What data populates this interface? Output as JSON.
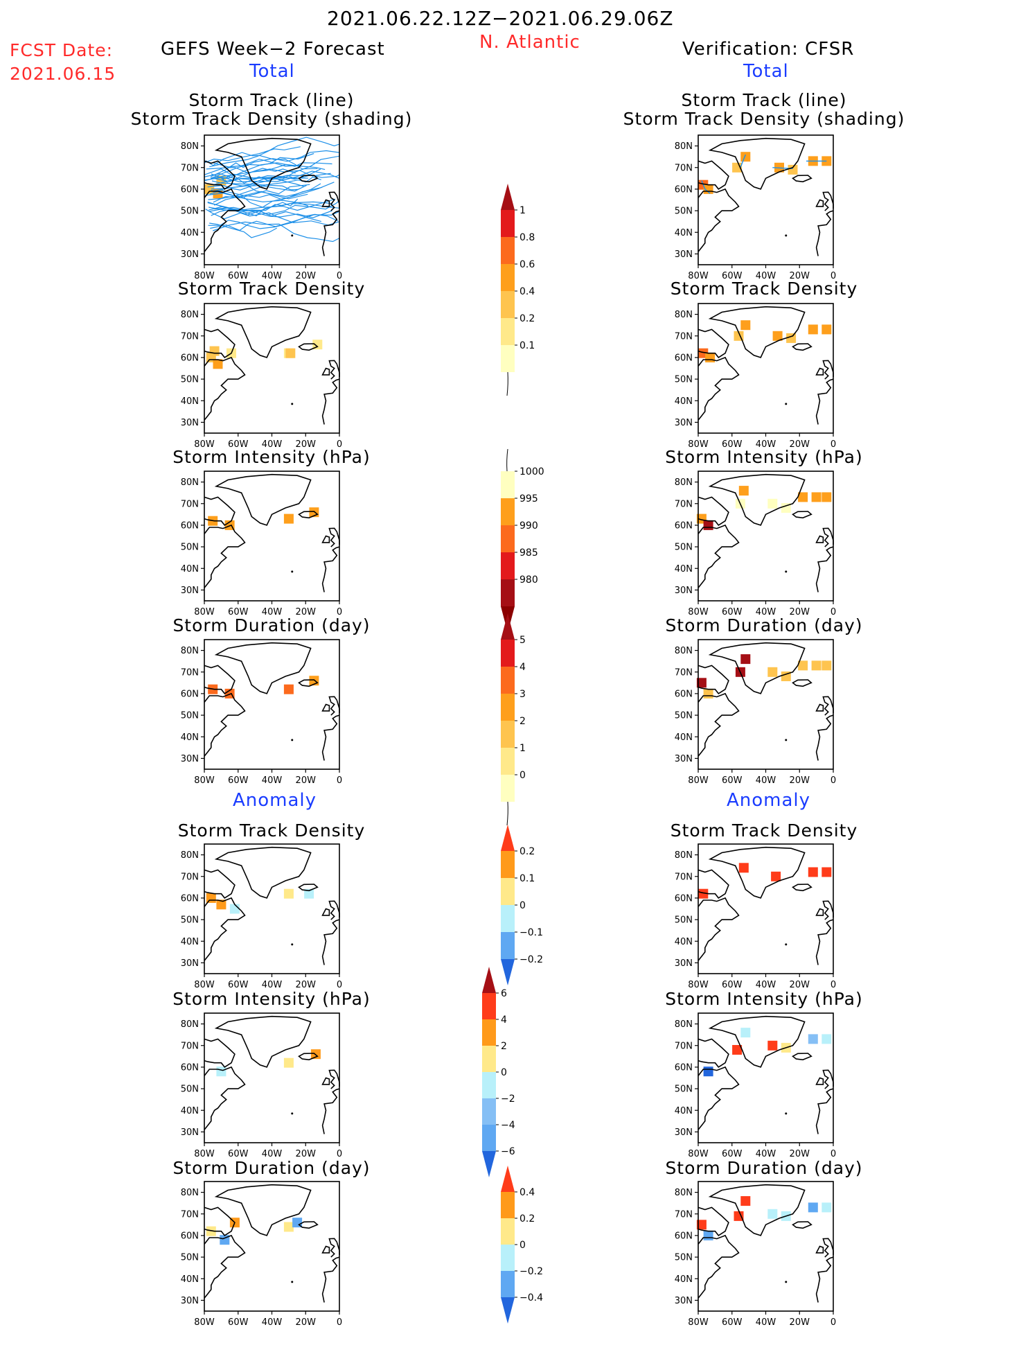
{
  "header": {
    "period": "2021.06.22.12Z−2021.06.29.06Z",
    "region": "N. Atlantic",
    "fcst_label": "FCST Date:",
    "fcst_date": "2021.06.15",
    "left_title": "GEFS Week−2 Forecast",
    "right_title": "Verification: CFSR",
    "left_section": "Total",
    "right_section": "Total",
    "left_anomaly": "Anomaly",
    "right_anomaly": "Anomaly"
  },
  "panels": {
    "track_title_1": "Storm Track (line)",
    "track_title_2": "Storm Track Density (shading)",
    "density": "Storm Track Density",
    "intensity": "Storm Intensity (hPa)",
    "duration": "Storm Duration (day)"
  },
  "axes": {
    "y_ticks": [
      "80N",
      "70N",
      "60N",
      "50N",
      "40N",
      "30N"
    ],
    "x_ticks": [
      "80W",
      "60W",
      "40W",
      "20W",
      "0"
    ]
  },
  "colorbars": {
    "density": {
      "labels": [
        "1",
        "0.8",
        "0.6",
        "0.4",
        "0.2",
        "0.1"
      ],
      "colors": [
        "#a50f15",
        "#e31a1c",
        "#fc6a1d",
        "#fe9f1c",
        "#fec44f",
        "#ffe98a",
        "#ffffc0"
      ]
    },
    "intensity": {
      "labels": [
        "1000",
        "995",
        "990",
        "985",
        "980"
      ],
      "colors": [
        "#ffffc0",
        "#fe9f1c",
        "#fc6a1d",
        "#e31a1c",
        "#a50f15",
        "#8b0000"
      ]
    },
    "duration": {
      "labels": [
        "5",
        "4",
        "3",
        "2",
        "1",
        "0"
      ],
      "colors": [
        "#a50f15",
        "#e31a1c",
        "#fc6a1d",
        "#fe9f1c",
        "#fec44f",
        "#ffe98a",
        "#ffffc0"
      ]
    },
    "anom_density": {
      "labels": [
        "0.2",
        "0.1",
        "0",
        "−0.1",
        "−0.2"
      ],
      "colors": [
        "#ff3c1a",
        "#ff9a1a",
        "#ffe98a",
        "#b8f0fa",
        "#5fa8f2",
        "#2266dd"
      ]
    },
    "anom_intensity": {
      "labels": [
        "6",
        "4",
        "2",
        "0",
        "−2",
        "−4",
        "−6"
      ],
      "colors": [
        "#a50f15",
        "#ff3c1a",
        "#ff9a1a",
        "#ffe98a",
        "#b8f0fa",
        "#85bff5",
        "#5fa8f2",
        "#2266dd"
      ]
    },
    "anom_duration": {
      "labels": [
        "0.4",
        "0.2",
        "0",
        "−0.2",
        "−0.4"
      ],
      "colors": [
        "#ff3c1a",
        "#ff9a1a",
        "#ffe98a",
        "#b8f0fa",
        "#5fa8f2",
        "#2266dd"
      ]
    }
  },
  "chart_data": [
    {
      "type": "heatmap",
      "title": "Storm Track (line) / Storm Track Density (shading)",
      "model": "GEFS Week-2 Forecast",
      "xlim": [
        -80,
        0
      ],
      "ylim": [
        25,
        85
      ],
      "note_ensemble_tracks": "many",
      "cells": [
        {
          "lon": -77,
          "lat": 60,
          "v": 0.2
        },
        {
          "lon": -72,
          "lat": 58,
          "v": 0.4
        },
        {
          "lon": -70,
          "lat": 64,
          "v": 0.2
        }
      ]
    },
    {
      "type": "heatmap",
      "title": "Storm Track (line) / Storm Track Density (shading)",
      "model": "Verification: CFSR",
      "xlim": [
        -80,
        0
      ],
      "ylim": [
        25,
        85
      ],
      "cells": [
        {
          "lon": -77,
          "lat": 62,
          "v": 0.6
        },
        {
          "lon": -74,
          "lat": 60,
          "v": 0.4
        },
        {
          "lon": -52,
          "lat": 75,
          "v": 0.4
        },
        {
          "lon": -57,
          "lat": 70,
          "v": 0.2
        },
        {
          "lon": -32,
          "lat": 70,
          "v": 0.4
        },
        {
          "lon": -24,
          "lat": 69,
          "v": 0.2
        },
        {
          "lon": -12,
          "lat": 73,
          "v": 0.4
        },
        {
          "lon": -4,
          "lat": 73,
          "v": 0.4
        }
      ]
    },
    {
      "type": "heatmap",
      "title": "Storm Track Density",
      "model": "GEFS Week-2 Forecast",
      "xlim": [
        -80,
        0
      ],
      "ylim": [
        25,
        85
      ],
      "cells": [
        {
          "lon": -76,
          "lat": 60,
          "v": 0.2
        },
        {
          "lon": -72,
          "lat": 57,
          "v": 0.4
        },
        {
          "lon": -74,
          "lat": 63,
          "v": 0.2
        },
        {
          "lon": -64,
          "lat": 62,
          "v": 0.1
        },
        {
          "lon": -30,
          "lat": 62,
          "v": 0.1
        },
        {
          "lon": -29,
          "lat": 62,
          "v": 0.2
        },
        {
          "lon": -13,
          "lat": 66,
          "v": 0.1
        }
      ]
    },
    {
      "type": "heatmap",
      "title": "Storm Track Density",
      "model": "Verification: CFSR",
      "xlim": [
        -80,
        0
      ],
      "ylim": [
        25,
        85
      ],
      "cells": [
        {
          "lon": -77,
          "lat": 62,
          "v": 0.6
        },
        {
          "lon": -73,
          "lat": 60,
          "v": 0.4
        },
        {
          "lon": -52,
          "lat": 75,
          "v": 0.4
        },
        {
          "lon": -56,
          "lat": 70,
          "v": 0.2
        },
        {
          "lon": -33,
          "lat": 70,
          "v": 0.4
        },
        {
          "lon": -25,
          "lat": 69,
          "v": 0.2
        },
        {
          "lon": -12,
          "lat": 73,
          "v": 0.4
        },
        {
          "lon": -4,
          "lat": 73,
          "v": 0.4
        }
      ]
    },
    {
      "type": "heatmap",
      "title": "Storm Intensity (hPa)",
      "model": "GEFS Week-2 Forecast",
      "xlim": [
        -80,
        0
      ],
      "ylim": [
        25,
        85
      ],
      "cells": [
        {
          "lon": -75,
          "lat": 62,
          "v": 992
        },
        {
          "lon": -65,
          "lat": 60,
          "v": 992
        },
        {
          "lon": -30,
          "lat": 63,
          "v": 993
        },
        {
          "lon": -15,
          "lat": 66,
          "v": 993
        }
      ]
    },
    {
      "type": "heatmap",
      "title": "Storm Intensity (hPa)",
      "model": "Verification: CFSR",
      "xlim": [
        -80,
        0
      ],
      "ylim": [
        25,
        85
      ],
      "cells": [
        {
          "lon": -78,
          "lat": 63,
          "v": 993
        },
        {
          "lon": -74,
          "lat": 60,
          "v": 982
        },
        {
          "lon": -53,
          "lat": 76,
          "v": 993
        },
        {
          "lon": -55,
          "lat": 70,
          "v": 995
        },
        {
          "lon": -36,
          "lat": 70,
          "v": 998
        },
        {
          "lon": -28,
          "lat": 68,
          "v": 995
        },
        {
          "lon": -18,
          "lat": 73,
          "v": 993
        },
        {
          "lon": -10,
          "lat": 73,
          "v": 993
        },
        {
          "lon": -4,
          "lat": 73,
          "v": 993
        }
      ]
    },
    {
      "type": "heatmap",
      "title": "Storm Duration (day)",
      "model": "GEFS Week-2 Forecast",
      "xlim": [
        -80,
        0
      ],
      "ylim": [
        25,
        85
      ],
      "cells": [
        {
          "lon": -75,
          "lat": 62,
          "v": 3
        },
        {
          "lon": -65,
          "lat": 60,
          "v": 3
        },
        {
          "lon": -30,
          "lat": 62,
          "v": 3
        },
        {
          "lon": -15,
          "lat": 66,
          "v": 2
        }
      ]
    },
    {
      "type": "heatmap",
      "title": "Storm Duration (day)",
      "model": "Verification: CFSR",
      "xlim": [
        -80,
        0
      ],
      "ylim": [
        25,
        85
      ],
      "cells": [
        {
          "lon": -78,
          "lat": 65,
          "v": 5
        },
        {
          "lon": -74,
          "lat": 60,
          "v": 1
        },
        {
          "lon": -52,
          "lat": 76,
          "v": 5
        },
        {
          "lon": -55,
          "lat": 70,
          "v": 5
        },
        {
          "lon": -36,
          "lat": 70,
          "v": 1
        },
        {
          "lon": -28,
          "lat": 68,
          "v": 1
        },
        {
          "lon": -18,
          "lat": 73,
          "v": 1
        },
        {
          "lon": -10,
          "lat": 73,
          "v": 1
        },
        {
          "lon": -4,
          "lat": 73,
          "v": 1
        }
      ]
    },
    {
      "type": "heatmap",
      "title": "Anomaly: Storm Track Density",
      "model": "GEFS Week-2 Forecast",
      "xlim": [
        -80,
        0
      ],
      "ylim": [
        25,
        85
      ],
      "cells": [
        {
          "lon": -76,
          "lat": 60,
          "v": 0.1
        },
        {
          "lon": -70,
          "lat": 57,
          "v": 0.1
        },
        {
          "lon": -62,
          "lat": 55,
          "v": -0.05
        },
        {
          "lon": -30,
          "lat": 62,
          "v": 0.05
        },
        {
          "lon": -18,
          "lat": 62,
          "v": -0.05
        }
      ]
    },
    {
      "type": "heatmap",
      "title": "Anomaly: Storm Track Density",
      "model": "Verification: CFSR",
      "xlim": [
        -80,
        0
      ],
      "ylim": [
        25,
        85
      ],
      "cells": [
        {
          "lon": -77,
          "lat": 62,
          "v": 0.2
        },
        {
          "lon": -53,
          "lat": 74,
          "v": 0.2
        },
        {
          "lon": -34,
          "lat": 70,
          "v": 0.2
        },
        {
          "lon": -12,
          "lat": 72,
          "v": 0.2
        },
        {
          "lon": -4,
          "lat": 72,
          "v": 0.2
        }
      ]
    },
    {
      "type": "heatmap",
      "title": "Anomaly: Storm Intensity (hPa)",
      "model": "GEFS Week-2 Forecast",
      "xlim": [
        -80,
        0
      ],
      "ylim": [
        25,
        85
      ],
      "cells": [
        {
          "lon": -70,
          "lat": 58,
          "v": -1
        },
        {
          "lon": -30,
          "lat": 62,
          "v": 1
        },
        {
          "lon": -14,
          "lat": 66,
          "v": 3
        }
      ]
    },
    {
      "type": "heatmap",
      "title": "Anomaly: Storm Intensity (hPa)",
      "model": "Verification: CFSR",
      "xlim": [
        -80,
        0
      ],
      "ylim": [
        25,
        85
      ],
      "cells": [
        {
          "lon": -74,
          "lat": 58,
          "v": -6
        },
        {
          "lon": -57,
          "lat": 68,
          "v": 5
        },
        {
          "lon": -52,
          "lat": 76,
          "v": -1
        },
        {
          "lon": -36,
          "lat": 70,
          "v": 5
        },
        {
          "lon": -28,
          "lat": 69,
          "v": 1
        },
        {
          "lon": -12,
          "lat": 73,
          "v": -3
        },
        {
          "lon": -4,
          "lat": 73,
          "v": -1
        }
      ]
    },
    {
      "type": "heatmap",
      "title": "Anomaly: Storm Duration (day)",
      "model": "GEFS Week-2 Forecast",
      "xlim": [
        -80,
        0
      ],
      "ylim": [
        25,
        85
      ],
      "cells": [
        {
          "lon": -76,
          "lat": 62,
          "v": 0.1
        },
        {
          "lon": -68,
          "lat": 58,
          "v": -0.3
        },
        {
          "lon": -62,
          "lat": 66,
          "v": 0.3
        },
        {
          "lon": -30,
          "lat": 64,
          "v": 0.1
        },
        {
          "lon": -25,
          "lat": 66,
          "v": -0.3
        }
      ]
    },
    {
      "type": "heatmap",
      "title": "Anomaly: Storm Duration (day)",
      "model": "Verification: CFSR",
      "xlim": [
        -80,
        0
      ],
      "ylim": [
        25,
        85
      ],
      "cells": [
        {
          "lon": -78,
          "lat": 65,
          "v": 0.4
        },
        {
          "lon": -74,
          "lat": 60,
          "v": -0.4
        },
        {
          "lon": -52,
          "lat": 76,
          "v": 0.4
        },
        {
          "lon": -56,
          "lat": 69,
          "v": 0.4
        },
        {
          "lon": -36,
          "lat": 70,
          "v": -0.1
        },
        {
          "lon": -28,
          "lat": 69,
          "v": -0.2
        },
        {
          "lon": -12,
          "lat": 73,
          "v": -0.4
        },
        {
          "lon": -4,
          "lat": 73,
          "v": -0.1
        }
      ]
    }
  ]
}
